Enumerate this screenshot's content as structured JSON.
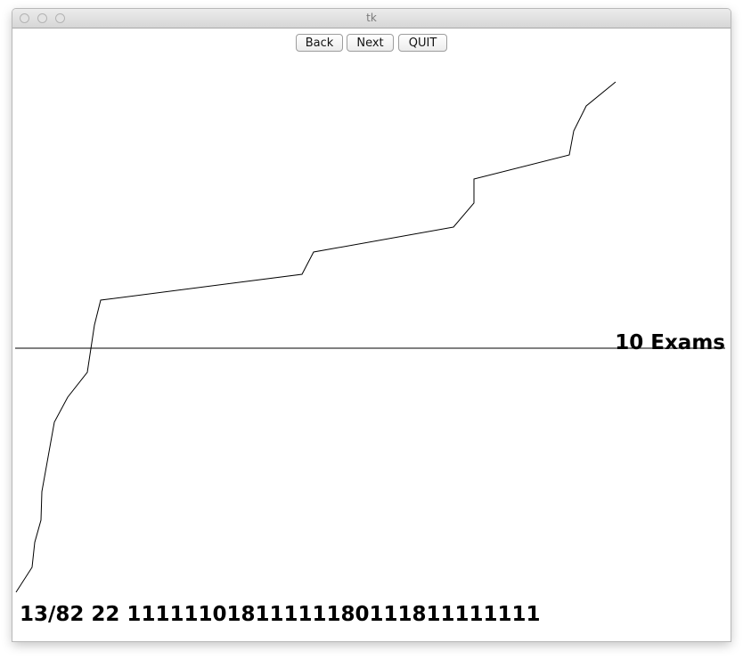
{
  "window": {
    "title": "tk"
  },
  "toolbar": {
    "back_label": "Back",
    "next_label": "Next",
    "quit_label": "QUIT"
  },
  "canvas": {
    "threshold_label": "10 Exams",
    "status_line": "13/82 22 11111101811111180111811111111"
  }
}
